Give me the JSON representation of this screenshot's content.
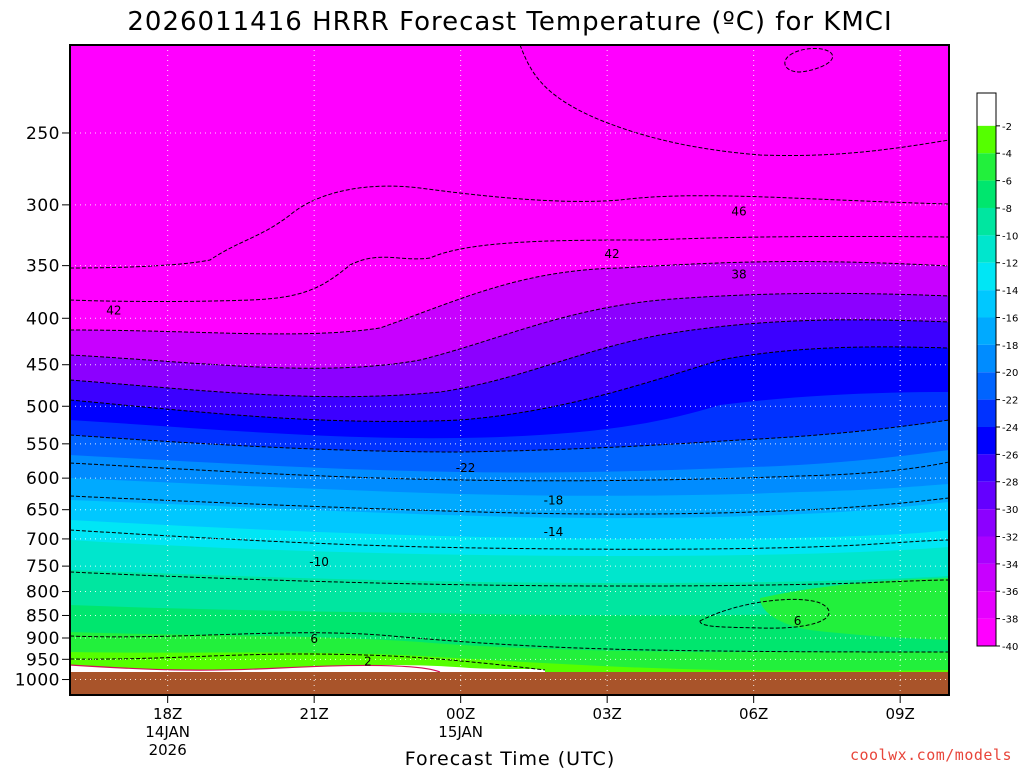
{
  "chart_data": {
    "type": "heatmap",
    "title": "2026011416 HRRR Forecast Temperature (ºC) for KMCI",
    "xlabel": "Forecast Time (UTC)",
    "ylabel": "",
    "credit": "coolwx.com/models",
    "x_ticks": [
      {
        "label": "18Z",
        "sub": [
          "14JAN",
          "2026"
        ],
        "hour": 18
      },
      {
        "label": "21Z",
        "sub": [],
        "hour": 21
      },
      {
        "label": "00Z",
        "sub": [
          "15JAN"
        ],
        "hour": 24
      },
      {
        "label": "03Z",
        "sub": [],
        "hour": 27
      },
      {
        "label": "06Z",
        "sub": [],
        "hour": 30
      },
      {
        "label": "09Z",
        "sub": [],
        "hour": 33
      }
    ],
    "xlim_hours": [
      16,
      34
    ],
    "y_scale": "log-pressure",
    "ylim_hpa": [
      1040,
      200
    ],
    "y_ticks": [
      250,
      300,
      350,
      400,
      450,
      500,
      550,
      600,
      650,
      700,
      750,
      800,
      850,
      900,
      950,
      1000
    ],
    "grid": true,
    "colorbar": {
      "placement": "right",
      "levels": [
        -2,
        -4,
        -6,
        -8,
        -10,
        -12,
        -14,
        -16,
        -18,
        -20,
        -22,
        -24,
        -26,
        -28,
        -30,
        -32,
        -34,
        -36,
        -38,
        -40
      ],
      "colors": [
        "#ffffff",
        "#55ff00",
        "#22f03c",
        "#00e66e",
        "#00e6a0",
        "#00e6cd",
        "#00e6f5",
        "#00c8ff",
        "#00aaff",
        "#008cff",
        "#0064ff",
        "#0032ff",
        "#0000ff",
        "#3c00ff",
        "#6400ff",
        "#8c00ff",
        "#aa00ff",
        "#c800ff",
        "#e600ff",
        "#ff00ff"
      ]
    },
    "contour_labels": [
      {
        "text": "46",
        "hour": 29.7,
        "hpa": 305
      },
      {
        "text": "42",
        "hour": 16.9,
        "hpa": 392
      },
      {
        "text": "42",
        "hour": 27.1,
        "hpa": 340
      },
      {
        "text": "38",
        "hour": 29.7,
        "hpa": 358
      },
      {
        "text": "-22",
        "hour": 24.1,
        "hpa": 585
      },
      {
        "text": "-18",
        "hour": 25.9,
        "hpa": 635
      },
      {
        "text": "-14",
        "hour": 25.9,
        "hpa": 688
      },
      {
        "text": "-10",
        "hour": 21.1,
        "hpa": 742
      },
      {
        "text": "6",
        "hour": 21.0,
        "hpa": 902
      },
      {
        "text": "6",
        "hour": 30.9,
        "hpa": 862
      },
      {
        "text": "2",
        "hour": 22.1,
        "hpa": 955
      }
    ]
  }
}
